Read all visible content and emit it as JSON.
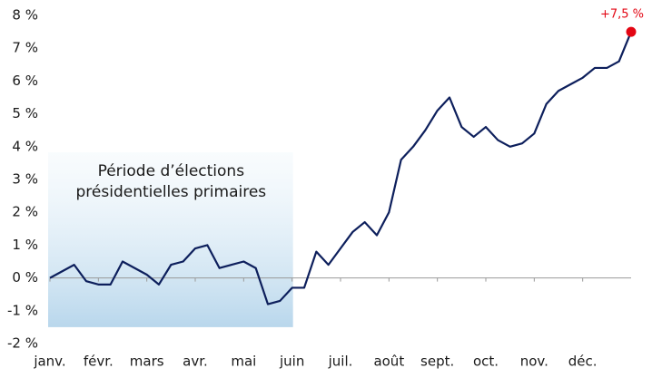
{
  "chart_data": {
    "type": "line",
    "categories": [
      "janv.",
      null,
      null,
      null,
      "févr.",
      null,
      null,
      null,
      "mars",
      null,
      null,
      null,
      "avr.",
      null,
      null,
      null,
      "mai",
      null,
      null,
      null,
      "juin",
      null,
      null,
      null,
      "juil.",
      null,
      null,
      null,
      "août",
      null,
      null,
      null,
      "sept.",
      null,
      null,
      null,
      "oct.",
      null,
      null,
      null,
      "nov.",
      null,
      null,
      null,
      "déc.",
      null,
      null,
      null,
      null
    ],
    "series": [
      {
        "color": "#0d1f5c",
        "values": [
          0.0,
          0.2,
          0.4,
          -0.1,
          -0.2,
          -0.2,
          0.5,
          0.3,
          0.1,
          -0.2,
          0.4,
          0.5,
          0.9,
          1.0,
          0.3,
          0.4,
          0.5,
          0.3,
          -0.8,
          -0.7,
          -0.3,
          -0.3,
          0.8,
          0.4,
          0.9,
          1.4,
          1.7,
          1.3,
          2.0,
          3.6,
          4.0,
          4.5,
          5.1,
          5.5,
          4.6,
          4.3,
          4.6,
          4.2,
          4.0,
          4.1,
          4.4,
          5.3,
          5.7,
          5.9,
          6.1,
          6.4,
          6.4,
          6.6,
          7.5
        ]
      }
    ],
    "end_point": {
      "value": 7.5,
      "label": "+7,5 %",
      "color": "#e30613"
    },
    "highlight": {
      "lines": [
        "Période d’élections",
        "présidentielles primaires"
      ],
      "start": "janv.",
      "end": "juin"
    },
    "ylim": [
      -2,
      8
    ],
    "yticks": [
      {
        "value": 8,
        "label": "8 %"
      },
      {
        "value": 7,
        "label": "7 %"
      },
      {
        "value": 6,
        "label": "6 %"
      },
      {
        "value": 5,
        "label": "5 %"
      },
      {
        "value": 4,
        "label": "4 %"
      },
      {
        "value": 3,
        "label": "3 %"
      },
      {
        "value": 2,
        "label": "2 %"
      },
      {
        "value": 1,
        "label": "1 %"
      },
      {
        "value": 0,
        "label": "0 %"
      },
      {
        "value": -1,
        "label": "-1 %"
      },
      {
        "value": -2,
        "label": "-2 %"
      }
    ],
    "grid": false
  }
}
